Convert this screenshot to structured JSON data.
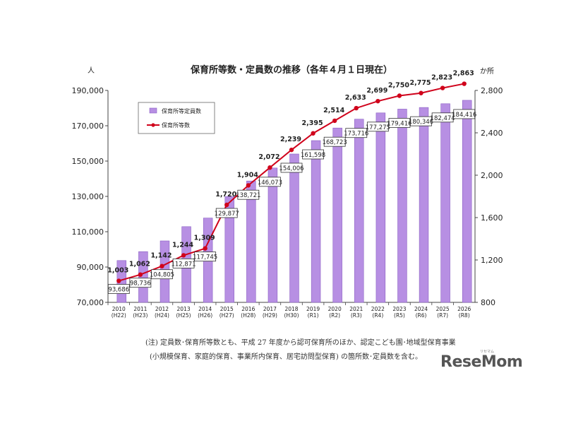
{
  "chart_data": {
    "type": "bar",
    "title": "保育所等数・定員数の推移（各年４月１日現在）",
    "y_left_unit": "人",
    "y_right_unit": "か所",
    "ylim_left": [
      70000,
      190000
    ],
    "ylim_right": [
      800,
      2800
    ],
    "y_left_ticks": [
      "70,000",
      "90,000",
      "110,000",
      "130,000",
      "150,000",
      "170,000",
      "190,000"
    ],
    "y_right_ticks": [
      "800",
      "1,200",
      "1,600",
      "2,000",
      "2,400",
      "2,800"
    ],
    "y_left_tick_values": [
      70000,
      90000,
      110000,
      130000,
      150000,
      170000,
      190000
    ],
    "y_right_tick_values": [
      800,
      1200,
      1600,
      2000,
      2400,
      2800
    ],
    "categories": [
      "2010",
      "2011",
      "2012",
      "2013",
      "2014",
      "2015",
      "2016",
      "2017",
      "2018",
      "2019",
      "2020",
      "2021",
      "2022",
      "2023",
      "2024",
      "2025",
      "2026"
    ],
    "categories_sub": [
      "(H22)",
      "(H23)",
      "(H24)",
      "(H25)",
      "(H26)",
      "(H27)",
      "(H28)",
      "(H29)",
      "(H30)",
      "(R1)",
      "(R2)",
      "(R3)",
      "(R4)",
      "(R5)",
      "(R6)",
      "(R7)",
      "(R8)"
    ],
    "series": [
      {
        "name": "保育所等定員数",
        "type": "bar",
        "axis": "left",
        "values": [
          93686,
          98736,
          104805,
          112871,
          117745,
          129877,
          138721,
          146073,
          154006,
          161598,
          168723,
          173716,
          177275,
          179416,
          180346,
          182474,
          184416
        ],
        "labels": [
          "93,686",
          "98,736",
          "104,805",
          "112,871",
          "117,745",
          "129,877",
          "138,721",
          "146,073",
          "154,006",
          "161,598",
          "168,723",
          "173,716",
          "177,275",
          "179,416",
          "180,346",
          "182,474",
          "184,416"
        ],
        "color": "#b78fe3"
      },
      {
        "name": "保育所等数",
        "type": "line",
        "axis": "right",
        "values": [
          1003,
          1062,
          1142,
          1244,
          1309,
          1720,
          1904,
          2072,
          2239,
          2395,
          2514,
          2633,
          2699,
          2750,
          2775,
          2823,
          2863
        ],
        "labels": [
          "1,003",
          "1,062",
          "1,142",
          "1,244",
          "1,309",
          "1,720",
          "1,904",
          "2,072",
          "2,239",
          "2,395",
          "2,514",
          "2,633",
          "2,699",
          "2,750",
          "2,775",
          "2,823",
          "2,863"
        ],
        "color": "#d0021b"
      }
    ],
    "legend_position": "top-left",
    "grid": false
  },
  "note": {
    "line1": "(注) 定員数･保育所等数とも、平成 27 年度から認可保育所のほか、認定こども園･地域型保育事業",
    "line2": "(小規模保育、家庭的保育、事業所内保育、居宅訪問型保育) の箇所数･定員数を含む。"
  },
  "logo": {
    "text": "ReseMom",
    "sub": "リセマム"
  }
}
